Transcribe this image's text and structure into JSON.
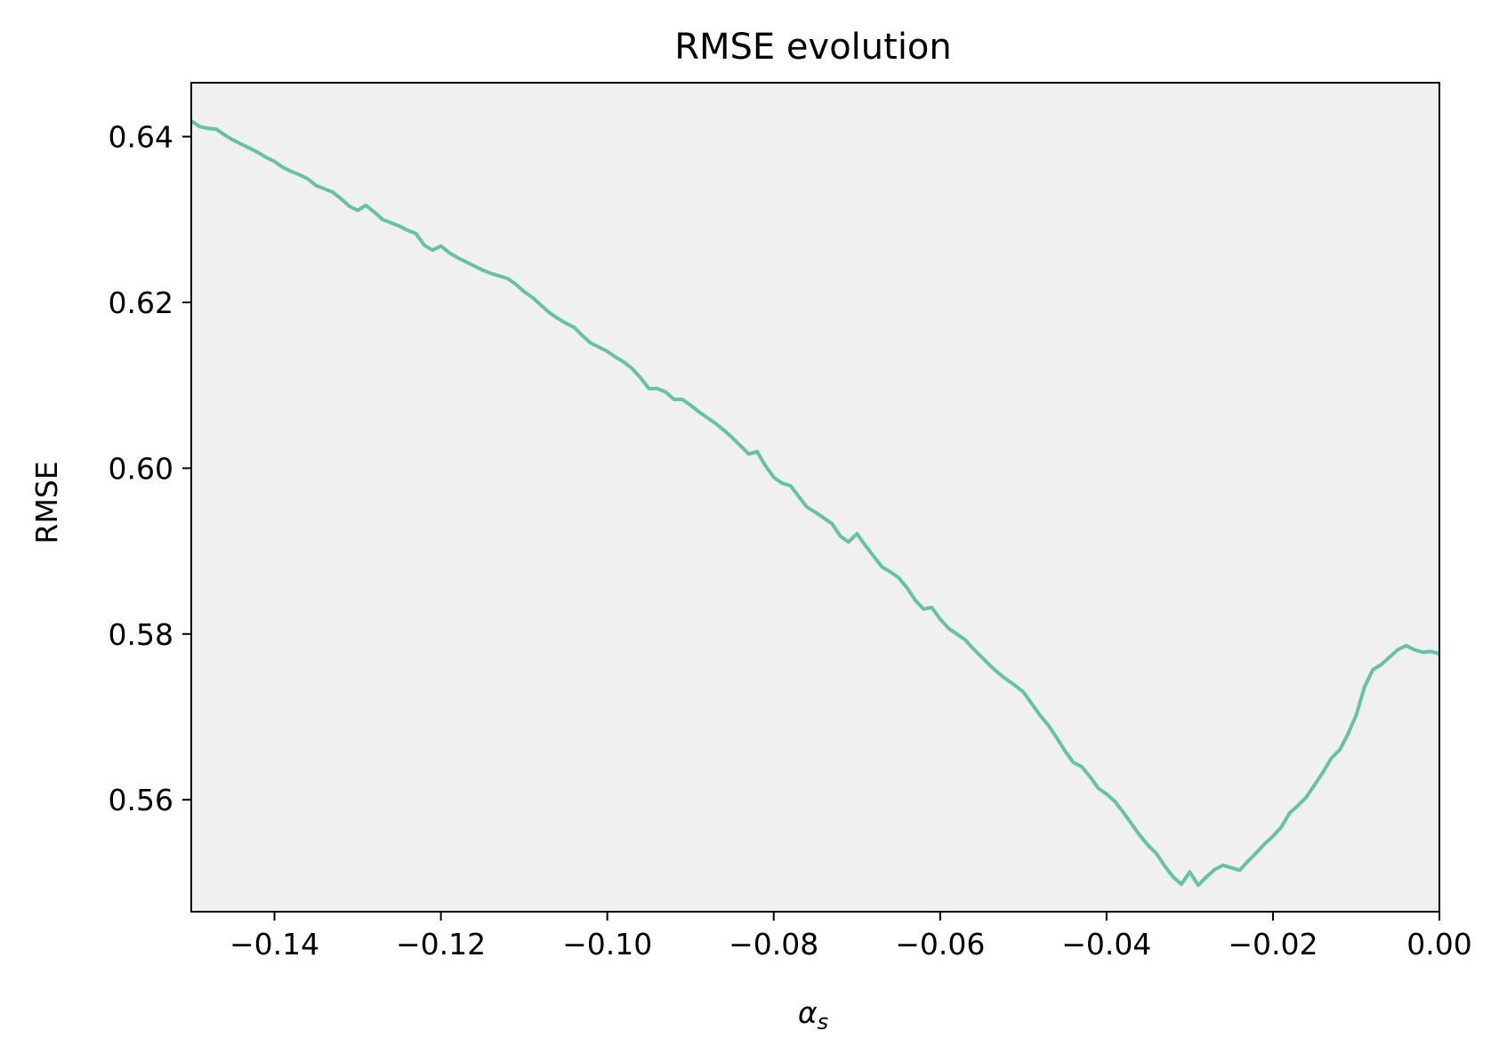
{
  "chart_data": {
    "type": "line",
    "title": "RMSE evolution",
    "xlabel": "α",
    "xlabel_subscript": "s",
    "ylabel": "RMSE",
    "xlim": [
      -0.15,
      0.0
    ],
    "ylim": [
      0.5465,
      0.6465
    ],
    "grid": false,
    "x_ticks": [
      "−0.14",
      "−0.12",
      "−0.10",
      "−0.08",
      "−0.06",
      "−0.04",
      "−0.02",
      "0.00"
    ],
    "x_tick_values": [
      -0.14,
      -0.12,
      -0.1,
      -0.08,
      -0.06,
      -0.04,
      -0.02,
      0.0
    ],
    "y_ticks": [
      "0.56",
      "0.58",
      "0.60",
      "0.62",
      "0.64"
    ],
    "y_tick_values": [
      0.56,
      0.58,
      0.6,
      0.62,
      0.64
    ],
    "colors": {
      "line": "#66c2a5",
      "plot_background": "#f0f0f0",
      "axes": "#000000"
    },
    "series": [
      {
        "x": [
          -0.15,
          -0.149,
          -0.148,
          -0.147,
          -0.146,
          -0.145,
          -0.144,
          -0.143,
          -0.142,
          -0.141,
          -0.14,
          -0.139,
          -0.138,
          -0.137,
          -0.136,
          -0.135,
          -0.134,
          -0.133,
          -0.132,
          -0.131,
          -0.13,
          -0.129,
          -0.128,
          -0.127,
          -0.126,
          -0.125,
          -0.124,
          -0.123,
          -0.122,
          -0.121,
          -0.12,
          -0.119,
          -0.118,
          -0.117,
          -0.116,
          -0.115,
          -0.114,
          -0.113,
          -0.112,
          -0.111,
          -0.11,
          -0.109,
          -0.108,
          -0.107,
          -0.106,
          -0.105,
          -0.104,
          -0.103,
          -0.102,
          -0.101,
          -0.1,
          -0.099,
          -0.098,
          -0.097,
          -0.096,
          -0.095,
          -0.094,
          -0.093,
          -0.092,
          -0.091,
          -0.09,
          -0.089,
          -0.088,
          -0.087,
          -0.086,
          -0.085,
          -0.084,
          -0.083,
          -0.082,
          -0.081,
          -0.08,
          -0.079,
          -0.078,
          -0.077,
          -0.076,
          -0.075,
          -0.074,
          -0.073,
          -0.072,
          -0.071,
          -0.07,
          -0.069,
          -0.068,
          -0.067,
          -0.066,
          -0.065,
          -0.064,
          -0.063,
          -0.062,
          -0.061,
          -0.06,
          -0.059,
          -0.058,
          -0.057,
          -0.056,
          -0.055,
          -0.054,
          -0.053,
          -0.052,
          -0.051,
          -0.05,
          -0.049,
          -0.048,
          -0.047,
          -0.046,
          -0.045,
          -0.044,
          -0.043,
          -0.042,
          -0.041,
          -0.04,
          -0.039,
          -0.038,
          -0.037,
          -0.036,
          -0.035,
          -0.034,
          -0.033,
          -0.032,
          -0.031,
          -0.03,
          -0.029,
          -0.028,
          -0.027,
          -0.026,
          -0.025,
          -0.024,
          -0.023,
          -0.022,
          -0.021,
          -0.02,
          -0.019,
          -0.018,
          -0.017,
          -0.016,
          -0.015,
          -0.014,
          -0.013,
          -0.012,
          -0.011,
          -0.01,
          -0.009,
          -0.008,
          -0.007,
          -0.006,
          -0.005,
          -0.004,
          -0.003,
          -0.002,
          -0.001,
          0.0
        ],
        "y": [
          0.6419,
          0.6412,
          0.641,
          0.6409,
          0.6402,
          0.6396,
          0.6391,
          0.6386,
          0.6381,
          0.6375,
          0.637,
          0.6363,
          0.6358,
          0.6354,
          0.6349,
          0.6341,
          0.6337,
          0.6333,
          0.6325,
          0.6316,
          0.6311,
          0.6317,
          0.6309,
          0.63,
          0.6296,
          0.6292,
          0.6287,
          0.6283,
          0.6269,
          0.6263,
          0.6268,
          0.626,
          0.6254,
          0.6249,
          0.6244,
          0.6239,
          0.6235,
          0.6232,
          0.6229,
          0.6222,
          0.6213,
          0.6206,
          0.6197,
          0.6188,
          0.6181,
          0.6175,
          0.617,
          0.616,
          0.6151,
          0.6146,
          0.6141,
          0.6134,
          0.6128,
          0.612,
          0.6109,
          0.6096,
          0.6096,
          0.6092,
          0.6083,
          0.6083,
          0.6076,
          0.6068,
          0.6061,
          0.6054,
          0.6046,
          0.6037,
          0.6027,
          0.6017,
          0.602,
          0.6003,
          0.5989,
          0.5982,
          0.5979,
          0.5966,
          0.5953,
          0.5947,
          0.594,
          0.5933,
          0.5918,
          0.5911,
          0.5921,
          0.5907,
          0.5894,
          0.5881,
          0.5875,
          0.5868,
          0.5856,
          0.5841,
          0.583,
          0.5832,
          0.5818,
          0.5807,
          0.58,
          0.5793,
          0.5782,
          0.5772,
          0.5762,
          0.5753,
          0.5745,
          0.5738,
          0.573,
          0.5716,
          0.5702,
          0.569,
          0.5675,
          0.5659,
          0.5645,
          0.564,
          0.5628,
          0.5614,
          0.5607,
          0.5598,
          0.5585,
          0.5571,
          0.5557,
          0.5545,
          0.5535,
          0.552,
          0.5507,
          0.5498,
          0.5513,
          0.5497,
          0.5507,
          0.5516,
          0.5521,
          0.5518,
          0.5515,
          0.5526,
          0.5536,
          0.5547,
          0.5556,
          0.5567,
          0.5584,
          0.5593,
          0.5603,
          0.5618,
          0.5633,
          0.565,
          0.566,
          0.5679,
          0.5702,
          0.5736,
          0.5757,
          0.5763,
          0.5772,
          0.5781,
          0.5786,
          0.5781,
          0.5778,
          0.5779,
          0.5776
        ]
      }
    ]
  }
}
